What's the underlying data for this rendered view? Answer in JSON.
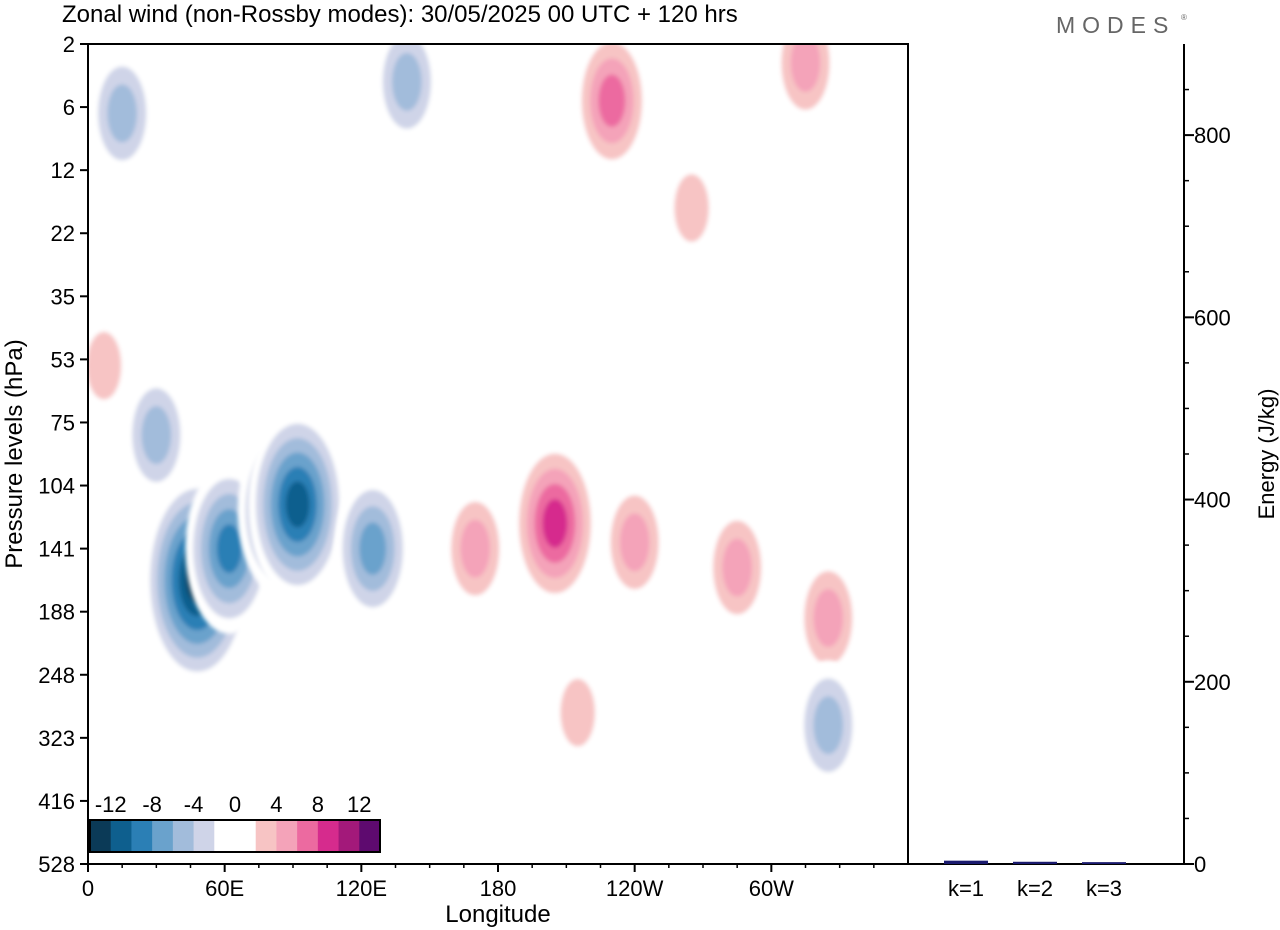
{
  "header": {
    "title": "Zonal wind (non-Rossby modes):  30/05/2025  00 UTC  + 120 hrs",
    "brand": "MODES"
  },
  "chart_data": [
    {
      "type": "heatmap",
      "xlabel": "Longitude",
      "ylabel": "Pressure levels (hPa)",
      "x_ticks": [
        "0",
        "60E",
        "120E",
        "180",
        "120W",
        "60W"
      ],
      "x_tick_values": [
        0,
        60,
        120,
        180,
        240,
        300
      ],
      "xlim": [
        0,
        360
      ],
      "y_ticks": [
        "2",
        "6",
        "12",
        "22",
        "35",
        "53",
        "75",
        "104",
        "141",
        "188",
        "248",
        "323",
        "416",
        "528"
      ],
      "y_scale": "categorical pressure levels, top to bottom",
      "colorbar": {
        "labels": [
          "-12",
          "-8",
          "-4",
          "0",
          "4",
          "8",
          "12"
        ],
        "levels": [
          -14,
          -12,
          -10,
          -8,
          -6,
          -4,
          -2,
          0,
          2,
          4,
          6,
          8,
          10,
          12,
          14
        ],
        "colors": [
          "#0b3a57",
          "#0e5f8e",
          "#2b7fb5",
          "#6aa2cc",
          "#a2bcdb",
          "#cfd4e8",
          "#ffffff",
          "#ffffff",
          "#f7c4c4",
          "#f4a3b9",
          "#ec6aa0",
          "#d62b8d",
          "#a3197a",
          "#5e0a6f"
        ]
      },
      "features": [
        {
          "lon": 30,
          "level": 6.2,
          "value": -6
        },
        {
          "lon": 48,
          "level": 8.5,
          "value": -14
        },
        {
          "lon": 62,
          "level": 8.0,
          "value": -10
        },
        {
          "lon": 85,
          "level": 7.4,
          "value": -10
        },
        {
          "lon": 92,
          "level": 7.3,
          "value": -12
        },
        {
          "lon": 125,
          "level": 8.0,
          "value": -8
        },
        {
          "lon": 170,
          "level": 8.0,
          "value": 6
        },
        {
          "lon": 205,
          "level": 7.6,
          "value": 10
        },
        {
          "lon": 240,
          "level": 7.9,
          "value": 5
        },
        {
          "lon": 285,
          "level": 8.3,
          "value": 5
        },
        {
          "lon": 325,
          "level": 9.1,
          "value": 5
        },
        {
          "lon": 215,
          "level": 10.6,
          "value": 4
        },
        {
          "lon": 325,
          "level": 10.8,
          "value": -6
        },
        {
          "lon": 230,
          "level": 0.9,
          "value": 8
        },
        {
          "lon": 315,
          "level": 0.3,
          "value": 5
        },
        {
          "lon": 140,
          "level": 0.6,
          "value": -6
        },
        {
          "lon": 15,
          "level": 1.1,
          "value": -5
        },
        {
          "lon": 265,
          "level": 2.6,
          "value": 3
        },
        {
          "lon": 7,
          "level": 5.1,
          "value": 3
        }
      ]
    },
    {
      "type": "bar",
      "ylabel": "Energy (J/kg)",
      "ylim": [
        0,
        900
      ],
      "y_ticks": [
        0,
        200,
        400,
        600,
        800
      ],
      "categories": [
        "k=1",
        "k=2",
        "k=3"
      ],
      "values": [
        2,
        0.8,
        0.4
      ],
      "bar_color": "#1a1a6e"
    }
  ]
}
